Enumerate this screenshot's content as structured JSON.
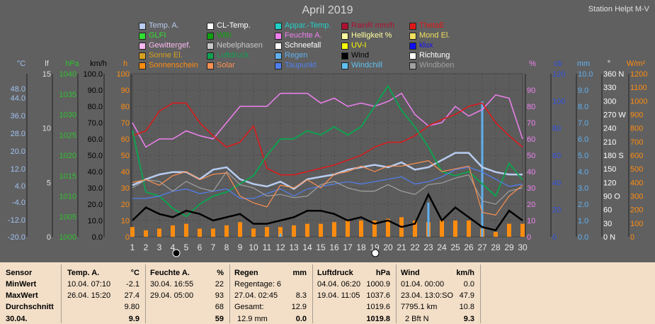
{
  "title": "April 2019",
  "station": "Station Helpt M-V",
  "legend": [
    {
      "label": "Temp. A.",
      "color": "#b8ccf0"
    },
    {
      "label": "CL-Temp.",
      "color": "#ffffff"
    },
    {
      "label": "Appar.-Temp.",
      "color": "#20d0c8"
    },
    {
      "label": "RainR mm/h",
      "color": "#b01030"
    },
    {
      "label": "ThetaE",
      "color": "#e01818"
    },
    {
      "label": "GLFI",
      "color": "#30e030"
    },
    {
      "label": "WBI",
      "color": "#10a010"
    },
    {
      "label": "Feuchte A.",
      "color": "#f080f0"
    },
    {
      "label": "Helligkeit %",
      "color": "#ffffa0"
    },
    {
      "label": "Mond El.",
      "color": "#f0e060"
    },
    {
      "label": "Gewittergef.",
      "color": "#f8b8f0"
    },
    {
      "label": "Nebelphasen",
      "color": "#c8c8c8"
    },
    {
      "label": "Schneefall",
      "color": "#ffffff"
    },
    {
      "label": "UV-I",
      "color": "#f8f800"
    },
    {
      "label": "klux",
      "color": "#1010f0"
    },
    {
      "label": "Sonne El.",
      "color": "#d8a020"
    },
    {
      "label": "Luftdruck",
      "color": "#10a050"
    },
    {
      "label": "Regen",
      "color": "#60b0f0"
    },
    {
      "label": "Wind",
      "color": "#000000"
    },
    {
      "label": "Richtung",
      "color": "#ffffff"
    },
    {
      "label": "Sonnenschein",
      "color": "#ff8c10"
    },
    {
      "label": "Solar",
      "color": "#ff9050"
    },
    {
      "label": "Taupunkt",
      "color": "#5080f0"
    },
    {
      "label": "Windchill",
      "color": "#60c0f0"
    },
    {
      "label": "Windböen",
      "color": "#a0a0a0"
    }
  ],
  "axes_left": [
    {
      "unit": "°C",
      "color": "#a0c0f0",
      "ticks": [
        "48.0",
        "44.0",
        "36.0",
        "28.0",
        "20.0",
        "12.0",
        "4.0",
        "-4.0",
        "-12.0",
        "-20.0"
      ]
    },
    {
      "unit": "lf",
      "color": "#e0e0e0",
      "ticks": [
        "15",
        "10",
        "5",
        "0"
      ]
    },
    {
      "unit": "hPa",
      "color": "#30c030",
      "ticks": [
        "1040",
        "1035",
        "1030",
        "1025",
        "1020",
        "1015",
        "1010",
        "1005",
        "1000"
      ]
    },
    {
      "unit": "km/h",
      "color": "#000000",
      "ticks": [
        "100.0",
        "90.0",
        "80.0",
        "70.0",
        "60.0",
        "50.0",
        "40.0",
        "30.0",
        "20.0",
        "10.0",
        "0.0"
      ]
    },
    {
      "unit": "h",
      "color": "#ff8c10",
      "ticks": [
        "100",
        "90",
        "80",
        "70",
        "60",
        "50",
        "40",
        "30",
        "20",
        "10",
        "0"
      ]
    }
  ],
  "axes_right": [
    {
      "unit": "%",
      "color": "#f080f0",
      "ticks": [
        "90",
        "80",
        "70",
        "60",
        "50",
        "40",
        "30",
        "20",
        "10",
        "0"
      ]
    },
    {
      "unit": "cb",
      "color": "#3050e0",
      "ticks": [
        "120",
        "100",
        "80",
        "60",
        "40",
        "20",
        "0"
      ]
    },
    {
      "unit": "mm",
      "color": "#60b0f0",
      "ticks": [
        "10.0",
        "9.0",
        "8.0",
        "7.0",
        "6.0",
        "5.0",
        "4.0",
        "3.0",
        "2.0",
        "1.0",
        "0.0"
      ]
    },
    {
      "unit": "°",
      "color": "#ffffff",
      "ticks": [
        "360 N",
        "330",
        "300",
        "270 W",
        "240",
        "210",
        "180 S",
        "150",
        "120",
        "90 O",
        "60",
        "30",
        "0   N"
      ]
    },
    {
      "unit": "W/m²",
      "color": "#ff8c10",
      "ticks": [
        "1200",
        "1100",
        "1000",
        "900",
        "800",
        "700",
        "600",
        "500",
        "400",
        "300",
        "200",
        "100",
        "0"
      ]
    }
  ],
  "chart_data": {
    "type": "line",
    "title": "April 2019",
    "x": [
      1,
      2,
      3,
      4,
      5,
      6,
      7,
      8,
      9,
      10,
      11,
      12,
      13,
      14,
      15,
      16,
      17,
      18,
      19,
      20,
      21,
      22,
      23,
      24,
      25,
      26,
      27,
      28,
      29,
      30
    ],
    "xlim": [
      1,
      30
    ],
    "grid": true,
    "series": [
      {
        "name": "Temp. A.",
        "axis": "°C",
        "values": [
          1.5,
          4,
          6,
          7,
          7,
          4,
          8,
          9,
          4,
          2,
          1,
          3,
          0,
          4,
          5,
          6,
          8,
          9,
          10,
          9,
          11,
          8,
          9,
          12,
          15,
          15,
          9,
          7,
          6,
          6
        ]
      },
      {
        "name": "Feuchte A.",
        "axis": "%",
        "values": [
          70,
          55,
          60,
          60,
          65,
          62,
          60,
          70,
          80,
          80,
          80,
          88,
          88,
          88,
          82,
          85,
          80,
          82,
          80,
          83,
          88,
          75,
          68,
          70,
          80,
          74,
          78,
          87,
          85,
          60
        ]
      },
      {
        "name": "ThetaE",
        "axis": "%",
        "values": [
          62,
          65,
          77,
          82,
          82,
          70,
          62,
          55,
          58,
          68,
          42,
          38,
          38,
          40,
          42,
          44,
          47,
          50,
          55,
          58,
          58,
          62,
          68,
          72,
          75,
          80,
          82,
          70,
          62,
          55
        ]
      },
      {
        "name": "Luftdruck",
        "axis": "hPa",
        "values": [
          1026,
          1011,
          1010,
          1007,
          1005,
          1008,
          1010,
          1011,
          1013,
          1015,
          1020,
          1024,
          1024,
          1026,
          1025,
          1027,
          1025,
          1027,
          1032,
          1037,
          1031,
          1027,
          1022,
          1016,
          1015,
          1016,
          1013,
          1010,
          1018,
          1014
        ]
      },
      {
        "name": "Taupunkt",
        "axis": "°C",
        "values": [
          -4,
          -4,
          -3,
          -1,
          0,
          -2,
          -1,
          0,
          -4,
          -4,
          -2,
          0,
          -3,
          0,
          1,
          2,
          3,
          2,
          3,
          4,
          5,
          2,
          3,
          5,
          8,
          9,
          7,
          4,
          1,
          2
        ]
      },
      {
        "name": "Windböen",
        "axis": "km/h",
        "values": [
          30,
          35,
          34,
          28,
          34,
          30,
          28,
          40,
          32,
          30,
          25,
          26,
          24,
          25,
          32,
          34,
          30,
          28,
          28,
          32,
          28,
          26,
          32,
          33,
          36,
          38,
          22,
          20,
          28,
          30
        ]
      },
      {
        "name": "Wind",
        "axis": "km/h",
        "values": [
          10,
          18,
          14,
          12,
          16,
          14,
          10,
          12,
          14,
          8,
          8,
          10,
          12,
          16,
          16,
          14,
          10,
          12,
          8,
          10,
          6,
          8,
          26,
          10,
          18,
          12,
          6,
          4,
          16,
          10
        ]
      },
      {
        "name": "Sonnenschein",
        "axis": "h",
        "values": [
          6,
          4,
          5,
          7,
          8,
          5,
          5,
          7,
          9,
          5,
          6,
          6,
          7,
          8,
          8,
          9,
          10,
          10,
          10,
          11,
          12,
          10,
          9,
          10,
          10,
          10,
          5,
          3,
          8,
          8
        ]
      },
      {
        "name": "Regen",
        "axis": "mm",
        "values": [
          0,
          0,
          0,
          0,
          0,
          0,
          0,
          0,
          0,
          0,
          0,
          0.2,
          0,
          0,
          0,
          0,
          0,
          0,
          0,
          0,
          0,
          0,
          2.1,
          0,
          0,
          0,
          8.3,
          0,
          0,
          0
        ]
      },
      {
        "name": "Solar",
        "axis": "W/m²",
        "values": [
          400,
          420,
          380,
          450,
          480,
          420,
          460,
          470,
          300,
          250,
          220,
          380,
          360,
          420,
          360,
          460,
          480,
          520,
          480,
          520,
          520,
          540,
          560,
          480,
          500,
          520,
          180,
          160,
          300,
          380
        ]
      }
    ],
    "markers": {
      "new_moon_day": 5,
      "full_moon_day": 19
    },
    "xticks": [
      "1",
      "2",
      "3",
      "4",
      "5",
      "6",
      "7",
      "8",
      "9",
      "10",
      "11",
      "12",
      "13",
      "14",
      "15",
      "16",
      "17",
      "18",
      "19",
      "20",
      "21",
      "22",
      "23",
      "24",
      "25",
      "26",
      "27",
      "28",
      "29",
      "30"
    ]
  },
  "stats": {
    "sensor": {
      "title": "Sensor",
      "rows": [
        "MinWert",
        "MaxWert",
        "Durchschnitt",
        "30.04."
      ]
    },
    "temp": {
      "title": "Temp. A.",
      "unit": "°C",
      "min_time": "10.04.  07:10",
      "min": "-2.1",
      "max_time": "26.04.  15:20",
      "max": "27.4",
      "avg": "9.80",
      "today": "9.9"
    },
    "hum": {
      "title": "Feuchte A.",
      "unit": "%",
      "min_time": "30.04.  16:55",
      "min": "22",
      "max_time": "29.04.  05:00",
      "max": "93",
      "avg": "68",
      "today": "59"
    },
    "rain": {
      "title": "Regen",
      "unit": "mm",
      "days": "Regentage: 6",
      "max_time": "27.04.  02:45",
      "max": "8.3",
      "total_label": "Gesamt:",
      "total": "12.9",
      "today_label": "12.9 mm",
      "today": "0.0"
    },
    "press": {
      "title": "Luftdruck",
      "unit": "hPa",
      "min_time": "04.04.  06:20",
      "min": "1000.9",
      "max_time": "19.04.  11:05",
      "max": "1037.6",
      "avg": "1019.6",
      "today": "1019.8"
    },
    "wind": {
      "title": "Wind",
      "unit": "km/h",
      "min_time": "01.04.  00:00",
      "min": "0.0",
      "max_time": "23.04.  13:0:SO",
      "max": "47.9",
      "dist": "7795.1 km",
      "avg": "10.8",
      "bft": "2 Bft N",
      "today": "9.3"
    }
  }
}
